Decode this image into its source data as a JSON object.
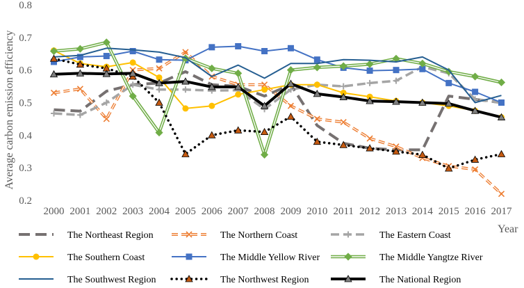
{
  "chart_data": {
    "type": "line",
    "title": "",
    "xlabel": "Year",
    "ylabel": "Average carbon emission efficiency",
    "ylim": [
      0.2,
      0.8
    ],
    "yticks": [
      "0.2",
      "0.3",
      "0.4",
      "0.5",
      "0.6",
      "0.7",
      "0.8"
    ],
    "grid": false,
    "legend_position": "bottom",
    "x": [
      "2000",
      "2001",
      "2002",
      "2003",
      "2004",
      "2005",
      "2006",
      "2007",
      "2008",
      "2009",
      "2010",
      "2011",
      "2012",
      "2013",
      "2014",
      "2015",
      "2016",
      "2017"
    ],
    "series": [
      {
        "name": "The Northeast Region",
        "color": "#767171",
        "style": "long-dash",
        "marker": "none",
        "values": [
          0.478,
          0.474,
          0.535,
          0.555,
          0.56,
          0.595,
          0.555,
          0.55,
          0.52,
          0.555,
          0.43,
          0.375,
          0.36,
          0.355,
          0.355,
          0.52,
          0.51,
          0.5
        ]
      },
      {
        "name": "The Northern Coast",
        "color": "#ED7D31",
        "style": "double-dash",
        "marker": "x",
        "values": [
          0.53,
          0.542,
          0.45,
          0.6,
          0.605,
          0.655,
          0.58,
          0.555,
          0.555,
          0.49,
          0.45,
          0.44,
          0.39,
          0.365,
          0.33,
          0.305,
          0.295,
          0.22
        ]
      },
      {
        "name": "The Eastern Coast",
        "color": "#A5A5A5",
        "style": "dash",
        "marker": "plus",
        "values": [
          0.467,
          0.462,
          0.5,
          0.555,
          0.54,
          0.54,
          0.537,
          0.538,
          0.48,
          0.54,
          0.555,
          0.55,
          0.56,
          0.567,
          0.61,
          0.59,
          0.51,
          0.5
        ]
      },
      {
        "name": "The Southern Coast",
        "color": "#FFC000",
        "style": "solid",
        "marker": "circle",
        "values": [
          0.66,
          0.62,
          0.61,
          0.623,
          0.577,
          0.482,
          0.49,
          0.525,
          0.54,
          0.555,
          0.555,
          0.53,
          0.518,
          0.505,
          0.5,
          0.49,
          0.475,
          0.455
        ]
      },
      {
        "name": "The Middle Yellow River",
        "color": "#4472C4",
        "style": "solid",
        "marker": "square",
        "values": [
          0.625,
          0.64,
          0.643,
          0.658,
          0.632,
          0.63,
          0.67,
          0.673,
          0.658,
          0.667,
          0.632,
          0.607,
          0.598,
          0.6,
          0.603,
          0.56,
          0.533,
          0.5
        ]
      },
      {
        "name": "The Middle Yangtze River",
        "color": "#70AD47",
        "style": "double-solid",
        "marker": "diamond",
        "values": [
          0.658,
          0.665,
          0.685,
          0.52,
          0.408,
          0.636,
          0.605,
          0.59,
          0.34,
          0.6,
          0.608,
          0.612,
          0.618,
          0.635,
          0.62,
          0.595,
          0.58,
          0.562
        ]
      },
      {
        "name": "The Southwest Region",
        "color": "#255E91",
        "style": "solid",
        "marker": "none",
        "values": [
          0.64,
          0.645,
          0.667,
          0.662,
          0.655,
          0.638,
          0.58,
          0.615,
          0.575,
          0.62,
          0.62,
          0.632,
          0.63,
          0.625,
          0.64,
          0.6,
          0.5,
          0.522
        ]
      },
      {
        "name": "The Northwest Region",
        "color": "#000000",
        "style": "dotted",
        "marker": "triangle",
        "markerFill": "#C55A11",
        "values": [
          0.635,
          0.617,
          0.605,
          0.58,
          0.5,
          0.342,
          0.4,
          0.415,
          0.41,
          0.457,
          0.38,
          0.37,
          0.36,
          0.35,
          0.34,
          0.298,
          0.325,
          0.342
        ]
      },
      {
        "name": "The National Region",
        "color": "#000000",
        "style": "thick",
        "marker": "triangle",
        "markerFill": "#7F7F7F",
        "values": [
          0.587,
          0.59,
          0.588,
          0.59,
          0.56,
          0.565,
          0.548,
          0.548,
          0.49,
          0.558,
          0.527,
          0.517,
          0.505,
          0.503,
          0.5,
          0.497,
          0.475,
          0.455
        ]
      }
    ]
  }
}
